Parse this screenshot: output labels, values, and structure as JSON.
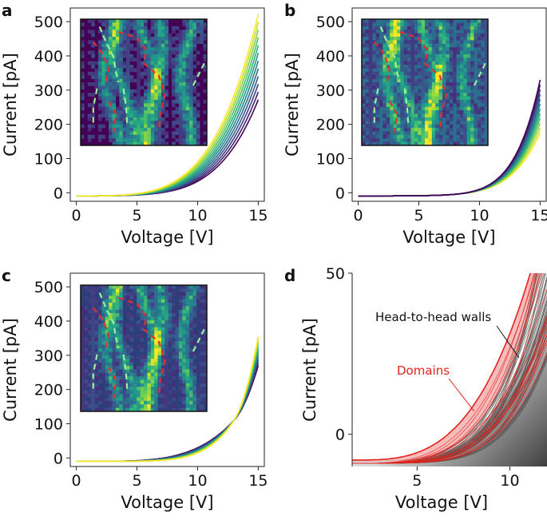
{
  "chart_data": [
    {
      "panel": "a",
      "type": "line",
      "xlabel": "Voltage [V]",
      "ylabel": "Current [pA]",
      "xlim": [
        -0.5,
        15.5
      ],
      "ylim": [
        -25,
        540
      ],
      "xticks": [
        "0",
        "5",
        "10",
        "15"
      ],
      "yticks": [
        "0",
        "100",
        "200",
        "300",
        "400",
        "500"
      ],
      "n_curves": 12,
      "curve_end_current_range": [
        270,
        520
      ],
      "curve_color_order": "purple-low-to-yellow-high",
      "colormap": "viridis",
      "inset": "conductance map with dashed domain-wall traces (red and green)"
    },
    {
      "panel": "b",
      "type": "line",
      "xlabel": "Voltage [V]",
      "ylabel": "Current [pA]",
      "xlim": [
        -0.5,
        15.5
      ],
      "ylim": [
        -25,
        540
      ],
      "xticks": [
        "0",
        "5",
        "10",
        "15"
      ],
      "yticks": [
        "0",
        "100",
        "200",
        "300",
        "400",
        "500"
      ],
      "n_curves": 12,
      "curve_end_current_range": [
        175,
        330
      ],
      "curve_color_order": "yellow-low-to-purple-high",
      "colormap": "viridis",
      "inset": "conductance map with dashed domain-wall traces (red and green)"
    },
    {
      "panel": "c",
      "type": "line",
      "xlabel": "Voltage [V]",
      "ylabel": "Current [pA]",
      "xlim": [
        -0.5,
        15.5
      ],
      "ylim": [
        -25,
        540
      ],
      "xticks": [
        "0",
        "5",
        "10",
        "15"
      ],
      "yticks": [
        "0",
        "100",
        "200",
        "300",
        "400",
        "500"
      ],
      "n_curves": 12,
      "crossing_point": {
        "voltage": 13,
        "current": 110
      },
      "curve_end_current_range": [
        270,
        355
      ],
      "colormap": "viridis",
      "inset": "conductance map with dashed domain-wall traces (red and green)"
    },
    {
      "panel": "d",
      "type": "line",
      "xlabel": "Voltage [V]",
      "ylabel": "Current [pA]",
      "xlim": [
        1.5,
        12
      ],
      "ylim": [
        -10,
        50
      ],
      "xticks": [
        "5",
        "10"
      ],
      "yticks": [
        "0",
        "50"
      ],
      "series": [
        {
          "name": "Head-to-head walls",
          "color": "#555555"
        },
        {
          "name": "Domains",
          "color": "#e3231c"
        }
      ]
    }
  ],
  "labels": {
    "panel_a": "a",
    "panel_b": "b",
    "panel_c": "c",
    "panel_d": "d",
    "head_to_head": "Head-to-head walls",
    "domains": "Domains"
  },
  "colors": {
    "viridis_dark": "#440154",
    "viridis_mid": "#21918c",
    "viridis_light": "#fde725",
    "domains_red": "#e3231c",
    "walls_grey": "#555555"
  }
}
